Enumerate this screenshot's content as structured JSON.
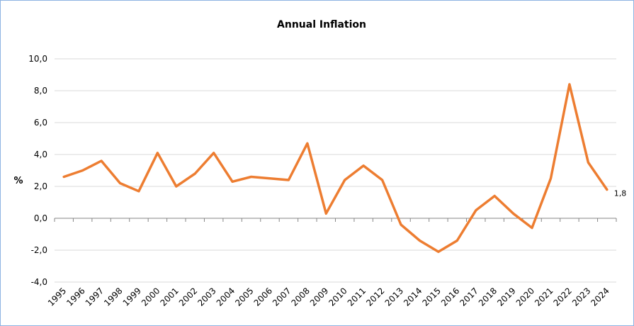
{
  "chart_data": {
    "type": "line",
    "title": "Annual Inflation",
    "ylabel": "%",
    "xlabel": "",
    "ylim": [
      -4,
      10
    ],
    "y_ticks": [
      "-4,0",
      "-2,0",
      "0,0",
      "2,0",
      "4,0",
      "6,0",
      "8,0",
      "10,0"
    ],
    "y_tick_values": [
      -4,
      -2,
      0,
      2,
      4,
      6,
      8,
      10
    ],
    "grid": true,
    "categories": [
      "1995",
      "1996",
      "1997",
      "1998",
      "1999",
      "2000",
      "2001",
      "2002",
      "2003",
      "2004",
      "2005",
      "2006",
      "2007",
      "2008",
      "2009",
      "2010",
      "2011",
      "2012",
      "2013",
      "2014",
      "2015",
      "2016",
      "2017",
      "2018",
      "2019",
      "2020",
      "2021",
      "2022",
      "2023",
      "2024"
    ],
    "series": [
      {
        "color": "#ed7d31",
        "values": [
          2.6,
          3.0,
          3.6,
          2.2,
          1.7,
          4.1,
          2.0,
          2.8,
          4.1,
          2.3,
          2.6,
          2.5,
          2.4,
          4.7,
          0.3,
          2.4,
          3.3,
          2.4,
          -0.4,
          -1.4,
          -2.1,
          -1.4,
          0.5,
          1.4,
          0.3,
          -0.6,
          2.5,
          8.4,
          3.5,
          1.8
        ]
      }
    ],
    "data_labels": [
      {
        "index": 29,
        "text": "1,8"
      }
    ]
  }
}
